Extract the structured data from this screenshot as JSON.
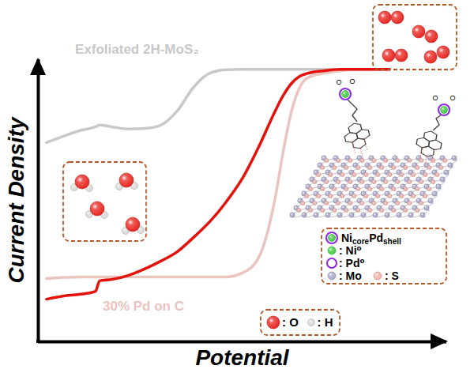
{
  "chart_data": {
    "type": "line",
    "x_label": "Potential",
    "y_label": "Current Density",
    "xlim": [
      0,
      100
    ],
    "ylim": [
      0,
      100
    ],
    "xticks": [],
    "yticks": [],
    "tick_labels": false,
    "grid": false,
    "x": [
      2,
      6,
      10,
      14,
      15,
      18,
      22,
      26,
      30,
      34,
      38,
      42,
      46,
      50,
      54,
      58,
      60,
      62,
      64,
      66,
      70,
      74,
      78,
      82,
      86
    ],
    "series": [
      {
        "name": "Exfoliated 2H-MoS₂",
        "color": "#c8c8c8",
        "values": [
          70.6,
          72.8,
          74.8,
          76.2,
          76.8,
          76.2,
          75.4,
          75.6,
          76.8,
          81.8,
          90.2,
          95.2,
          96.4,
          96.6,
          96.6,
          96.6,
          96.6,
          96.6,
          96.6,
          96.6,
          96.6,
          96.6,
          96.6,
          96.6,
          96.6
        ]
      },
      {
        "name": "30% Pd on C",
        "color": "#ebc3bf",
        "values": [
          22.4,
          22.8,
          23.0,
          23.0,
          23.0,
          23.0,
          23.0,
          23.0,
          23.0,
          23.0,
          23.0,
          23.0,
          23.0,
          24.4,
          30.0,
          51.0,
          67.8,
          81.8,
          90.2,
          93.6,
          95.2,
          96.1,
          96.6,
          96.6,
          96.6
        ]
      },
      {
        "color": "#e3120b",
        "values": [
          15.1,
          16.2,
          16.8,
          17.9,
          21.6,
          22.1,
          23.5,
          25.8,
          28.6,
          31.9,
          37.0,
          42.6,
          49.6,
          58.0,
          69.2,
          81.8,
          87.4,
          91.6,
          94.1,
          95.2,
          96.1,
          96.6,
          96.6,
          96.6,
          96.6
        ]
      }
    ],
    "annotations": {
      "catalyst_legend": {
        "core_shell": [
          {
            "text": "Ni"
          },
          {
            "text": "core",
            "sub": true
          },
          {
            "text": "Pd"
          },
          {
            "text": "shell",
            "sub": true
          }
        ],
        "items": [
          {
            "label": ": Ni⁰",
            "color": "#3ccf3c"
          },
          {
            "label": ": Pd⁰",
            "color": "#8e2de2",
            "marker": "ring"
          },
          {
            "label": ": Mo",
            "color": "#a9a9c9"
          },
          {
            "label": ": S",
            "color": "#f2b1a8"
          }
        ]
      },
      "atom_legend": [
        {
          "label": ": O",
          "color": "#e8231d"
        },
        {
          "label": ": H",
          "color": "#d9d9d9"
        }
      ],
      "linker_atom": "O"
    }
  }
}
